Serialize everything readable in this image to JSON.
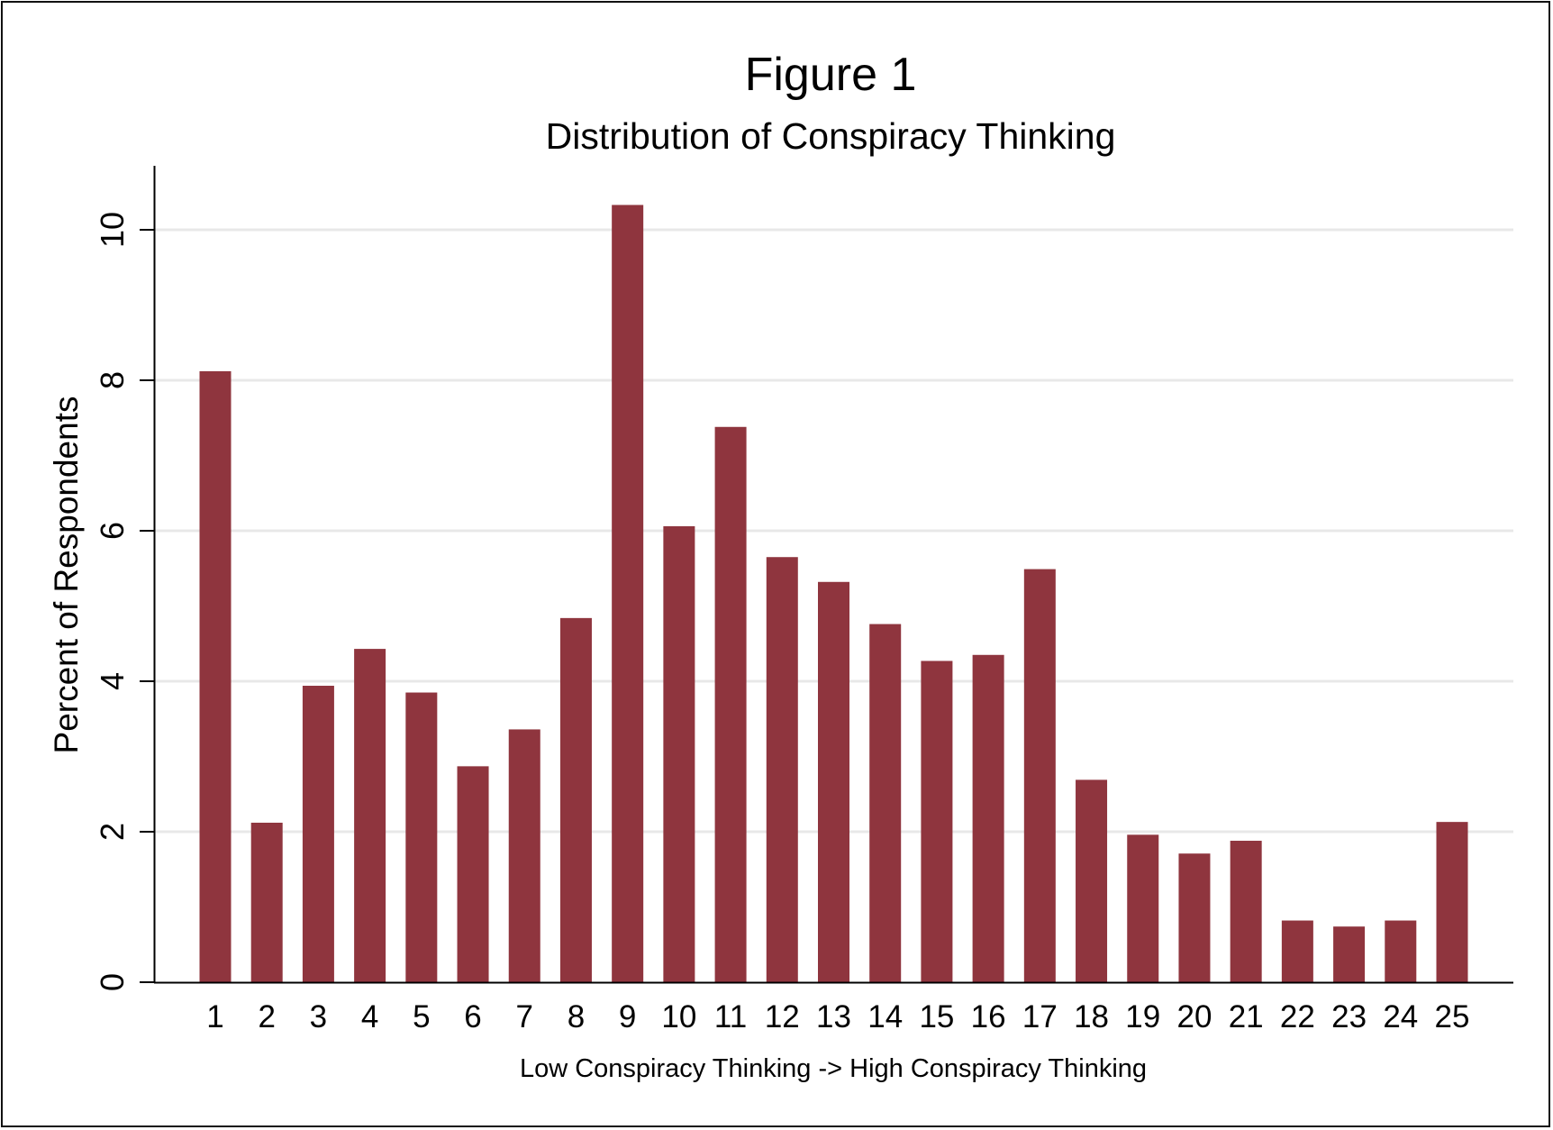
{
  "chart_data": {
    "type": "bar",
    "title": "Figure 1",
    "subtitle": "Distribution of Conspiracy Thinking",
    "xlabel": "Low Conspiracy Thinking -> High Conspiracy Thinking",
    "ylabel": "Percent of Respondents",
    "categories": [
      "1",
      "2",
      "3",
      "4",
      "5",
      "6",
      "7",
      "8",
      "9",
      "10",
      "11",
      "12",
      "13",
      "14",
      "15",
      "16",
      "17",
      "18",
      "19",
      "20",
      "21",
      "22",
      "23",
      "24",
      "25"
    ],
    "values": [
      8.12,
      2.12,
      3.94,
      4.43,
      3.85,
      2.87,
      3.36,
      4.84,
      10.33,
      6.06,
      7.38,
      5.65,
      5.32,
      4.76,
      4.27,
      4.35,
      5.49,
      2.69,
      1.96,
      1.71,
      1.88,
      0.82,
      0.74,
      0.82,
      2.13
    ],
    "yticks": [
      0,
      2,
      4,
      6,
      8,
      10
    ],
    "ylim": [
      0,
      10.8
    ],
    "grid": true,
    "legend": "none",
    "bar_color": "#8f353e",
    "grid_color": "#e8e8e8"
  }
}
